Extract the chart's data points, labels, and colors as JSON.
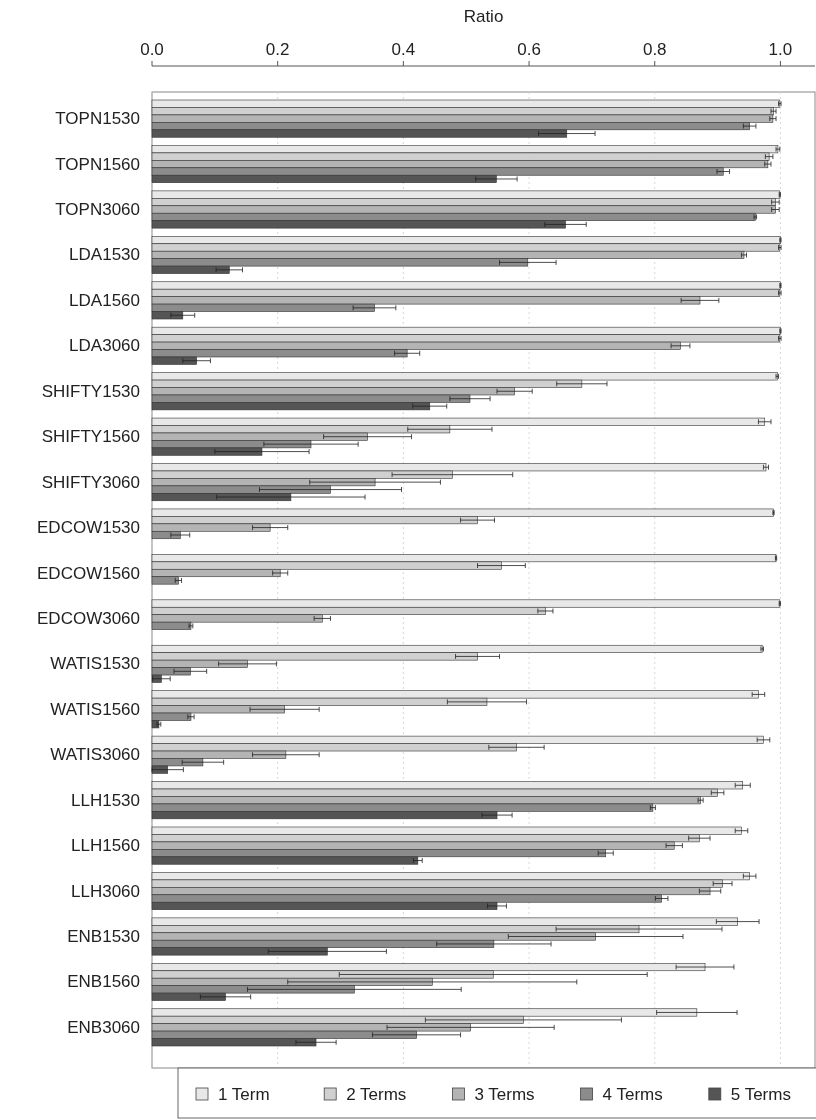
{
  "chart_data": {
    "type": "bar",
    "orientation": "horizontal",
    "xlabel": "Ratio",
    "categories": [
      "TOPN1530",
      "TOPN1560",
      "TOPN3060",
      "LDA1530",
      "LDA1560",
      "LDA3060",
      "SHIFTY1530",
      "SHIFTY1560",
      "SHIFTY3060",
      "EDCOW1530",
      "EDCOW1560",
      "EDCOW3060",
      "WATIS1530",
      "WATIS1560",
      "WATIS3060",
      "LLH1530",
      "LLH1560",
      "LLH3060",
      "ENB1530",
      "ENB1560",
      "ENB3060"
    ],
    "xlim": [
      0,
      1.055
    ],
    "xticks": [
      {
        "value": 0,
        "label": "0.0"
      },
      0.2,
      0.4,
      0.6,
      0.8,
      {
        "value": 1,
        "label": "1.0"
      }
    ],
    "grid": "x",
    "legend": "bottom",
    "series": [
      {
        "name": "1 Term",
        "color": "#e8e8e8",
        "values": [
          0.999,
          0.996,
          0.999,
          1.0,
          1.0,
          1.0,
          0.995,
          0.975,
          0.977,
          0.989,
          0.993,
          0.999,
          0.971,
          0.965,
          0.973,
          0.94,
          0.938,
          0.951,
          0.932,
          0.88,
          0.867
        ],
        "errors": [
          0.002,
          0.003,
          0.001,
          0.001,
          0.001,
          0.001,
          0.002,
          0.01,
          0.004,
          0.001,
          0.001,
          0.001,
          0.002,
          0.01,
          0.01,
          0.012,
          0.01,
          0.01,
          0.034,
          0.046,
          0.064
        ]
      },
      {
        "name": "2 Terms",
        "color": "#d0d0d0",
        "values": [
          0.989,
          0.982,
          0.992,
          0.999,
          0.999,
          0.999,
          0.684,
          0.474,
          0.478,
          0.518,
          0.556,
          0.626,
          0.518,
          0.533,
          0.58,
          0.9,
          0.871,
          0.908,
          0.775,
          0.543,
          0.591
        ],
        "errors": [
          0.004,
          0.006,
          0.006,
          0.002,
          0.002,
          0.002,
          0.04,
          0.067,
          0.096,
          0.027,
          0.038,
          0.012,
          0.035,
          0.063,
          0.044,
          0.01,
          0.017,
          0.015,
          0.132,
          0.245,
          0.156
        ]
      },
      {
        "name": "3 Terms",
        "color": "#b4b4b4",
        "values": [
          0.988,
          0.98,
          0.992,
          0.942,
          0.872,
          0.841,
          0.577,
          0.343,
          0.355,
          0.188,
          0.204,
          0.271,
          0.152,
          0.211,
          0.213,
          0.873,
          0.831,
          0.888,
          0.706,
          0.446,
          0.507
        ],
        "errors": [
          0.005,
          0.005,
          0.006,
          0.004,
          0.03,
          0.015,
          0.028,
          0.07,
          0.104,
          0.028,
          0.012,
          0.013,
          0.046,
          0.055,
          0.053,
          0.004,
          0.013,
          0.017,
          0.139,
          0.23,
          0.133
        ]
      },
      {
        "name": "4 Terms",
        "color": "#8c8c8c",
        "values": [
          0.951,
          0.909,
          0.96,
          0.598,
          0.354,
          0.406,
          0.506,
          0.253,
          0.284,
          0.045,
          0.042,
          0.062,
          0.061,
          0.062,
          0.081,
          0.797,
          0.722,
          0.811,
          0.544,
          0.322,
          0.421
        ],
        "errors": [
          0.01,
          0.01,
          0.002,
          0.045,
          0.034,
          0.02,
          0.032,
          0.075,
          0.113,
          0.015,
          0.005,
          0.003,
          0.026,
          0.005,
          0.033,
          0.004,
          0.012,
          0.01,
          0.091,
          0.17,
          0.07
        ]
      },
      {
        "name": "5 Terms",
        "color": "#555555",
        "values": [
          0.66,
          0.548,
          0.658,
          0.123,
          0.049,
          0.071,
          0.442,
          0.175,
          0.221,
          0,
          0,
          0,
          0.015,
          0.011,
          0.025,
          0.549,
          0.423,
          0.549,
          0.279,
          0.117,
          0.261
        ],
        "errors": [
          0.045,
          0.033,
          0.033,
          0.021,
          0.019,
          0.022,
          0.027,
          0.075,
          0.118,
          null,
          null,
          null,
          0.014,
          0.003,
          0.025,
          0.024,
          0.007,
          0.015,
          0.094,
          0.04,
          0.032
        ]
      }
    ]
  }
}
